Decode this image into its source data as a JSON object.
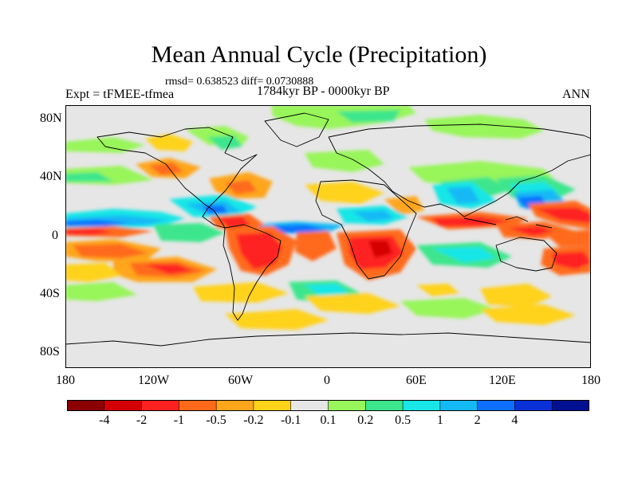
{
  "title": "Mean Annual Cycle (Precipitation)",
  "stats": "rmsd= 0.638523  diff= 0.0730888",
  "period": "1784kyr BP - 0000kyr BP",
  "expt": "Expt = tFMEE-tfmea",
  "season": "ANN",
  "lat_labels": [
    "80N",
    "40N",
    "0",
    "40S",
    "80S"
  ],
  "lon_labels": [
    "180",
    "120W",
    "60W",
    "0",
    "60E",
    "120E",
    "180"
  ],
  "colorbar": {
    "colors": [
      "#8b0000",
      "#d40000",
      "#ff2020",
      "#ff6a1a",
      "#ffa61a",
      "#ffd21a",
      "#e6e6e6",
      "#98f55a",
      "#3ce68c",
      "#19e6e6",
      "#12b9f5",
      "#0f6fff",
      "#0a30d8",
      "#001090"
    ],
    "labels": [
      "-4",
      "-2",
      "-1",
      "-0.5",
      "-0.2",
      "-0.1",
      "0.1",
      "0.2",
      "0.5",
      "1",
      "2",
      "4"
    ]
  }
}
